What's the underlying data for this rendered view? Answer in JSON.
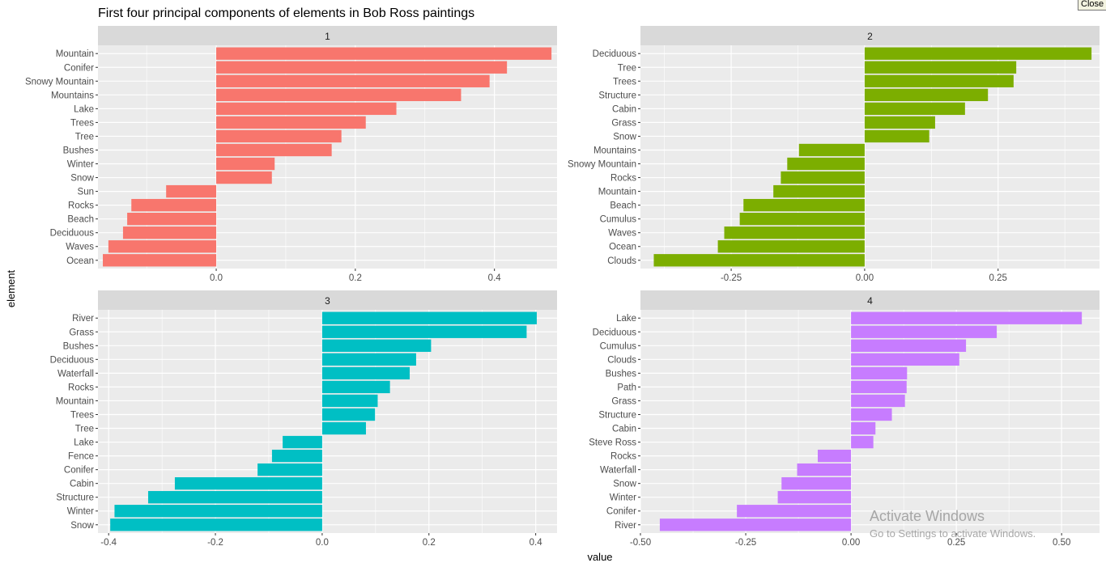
{
  "window": {
    "close_label": "Close"
  },
  "watermark": {
    "title": "Activate Windows",
    "subtitle": "Go to Settings to activate Windows."
  },
  "colors": {
    "panel_bg": "#ebebeb",
    "strip_bg": "#d9d9d9",
    "grid": "#ffffff",
    "text": "#4d4d4d"
  },
  "chart_data": {
    "type": "bar",
    "orientation": "horizontal",
    "title": "First four principal components of elements in Bob Ross paintings",
    "xlabel": "value",
    "ylabel": "element",
    "grid": true,
    "legend": "none",
    "facets": [
      {
        "strip": "1",
        "color": "#f8766d",
        "xlim": [
          -0.17,
          0.49
        ],
        "xticks": [
          0.0,
          0.2,
          0.4
        ],
        "xtick_labels": [
          "0.0",
          "0.2",
          "0.4"
        ],
        "minor": [
          -0.1,
          0.1,
          0.3
        ],
        "categories": [
          "Mountain",
          "Conifer",
          "Snowy Mountain",
          "Mountains",
          "Lake",
          "Trees",
          "Tree",
          "Bushes",
          "Winter",
          "Snow",
          "Sun",
          "Rocks",
          "Beach",
          "Deciduous",
          "Waves",
          "Ocean"
        ],
        "values": [
          0.482,
          0.418,
          0.393,
          0.352,
          0.259,
          0.215,
          0.18,
          0.166,
          0.084,
          0.08,
          -0.072,
          -0.122,
          -0.128,
          -0.134,
          -0.155,
          -0.163
        ]
      },
      {
        "strip": "2",
        "color": "#7cae00",
        "xlim": [
          -0.42,
          0.44
        ],
        "xticks": [
          -0.25,
          0.0,
          0.25
        ],
        "xtick_labels": [
          "-0.25",
          "0.00",
          "0.25"
        ],
        "minor": [
          -0.375,
          -0.125,
          0.125,
          0.375
        ],
        "categories": [
          "Deciduous",
          "Tree",
          "Trees",
          "Structure",
          "Cabin",
          "Grass",
          "Snow",
          "Mountains",
          "Snowy Mountain",
          "Rocks",
          "Mountain",
          "Beach",
          "Cumulus",
          "Waves",
          "Ocean",
          "Clouds"
        ],
        "values": [
          0.425,
          0.284,
          0.279,
          0.231,
          0.188,
          0.132,
          0.121,
          -0.123,
          -0.145,
          -0.157,
          -0.171,
          -0.227,
          -0.234,
          -0.263,
          -0.275,
          -0.395
        ]
      },
      {
        "strip": "3",
        "color": "#00bfc4",
        "xlim": [
          -0.42,
          0.44
        ],
        "xticks": [
          -0.4,
          -0.2,
          0.0,
          0.2,
          0.4
        ],
        "xtick_labels": [
          "-0.4",
          "-0.2",
          "0.0",
          "0.2",
          "0.4"
        ],
        "minor": [
          -0.3,
          -0.1,
          0.1,
          0.3
        ],
        "categories": [
          "River",
          "Grass",
          "Bushes",
          "Deciduous",
          "Waterfall",
          "Rocks",
          "Mountain",
          "Trees",
          "Tree",
          "Lake",
          "Fence",
          "Conifer",
          "Cabin",
          "Structure",
          "Winter",
          "Snow"
        ],
        "values": [
          0.402,
          0.383,
          0.204,
          0.176,
          0.164,
          0.127,
          0.104,
          0.099,
          0.082,
          -0.074,
          -0.094,
          -0.121,
          -0.276,
          -0.326,
          -0.389,
          -0.397
        ]
      },
      {
        "strip": "4",
        "color": "#c77cff",
        "xlim": [
          -0.5,
          0.59
        ],
        "xticks": [
          -0.5,
          -0.25,
          0.0,
          0.25,
          0.5
        ],
        "xtick_labels": [
          "-0.50",
          "-0.25",
          "0.00",
          "0.25",
          "0.50"
        ],
        "minor": [
          -0.375,
          -0.125,
          0.125,
          0.375
        ],
        "categories": [
          "Lake",
          "Deciduous",
          "Cumulus",
          "Clouds",
          "Bushes",
          "Path",
          "Grass",
          "Structure",
          "Cabin",
          "Steve Ross",
          "Rocks",
          "Waterfall",
          "Snow",
          "Winter",
          "Conifer",
          "River"
        ],
        "values": [
          0.548,
          0.346,
          0.273,
          0.257,
          0.133,
          0.132,
          0.128,
          0.097,
          0.058,
          0.053,
          -0.079,
          -0.128,
          -0.165,
          -0.174,
          -0.271,
          -0.454
        ]
      }
    ]
  }
}
